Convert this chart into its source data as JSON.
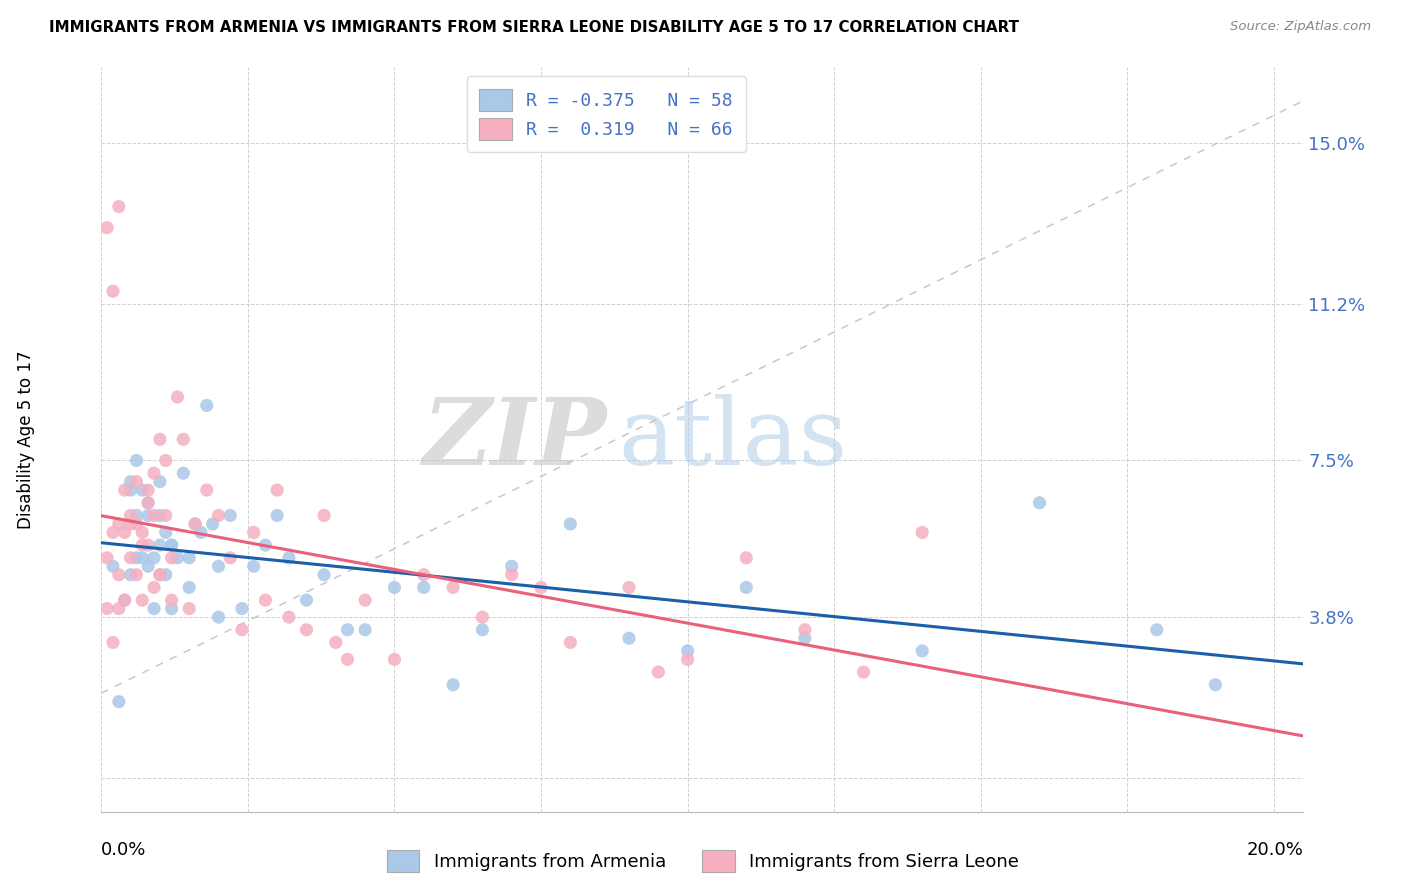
{
  "title": "IMMIGRANTS FROM ARMENIA VS IMMIGRANTS FROM SIERRA LEONE DISABILITY AGE 5 TO 17 CORRELATION CHART",
  "source": "Source: ZipAtlas.com",
  "ylabel": "Disability Age 5 to 17",
  "ytick_vals": [
    0.0,
    0.038,
    0.075,
    0.112,
    0.15
  ],
  "ytick_labels": [
    "",
    "3.8%",
    "7.5%",
    "11.2%",
    "15.0%"
  ],
  "xtick_vals": [
    0.0,
    0.025,
    0.05,
    0.075,
    0.1,
    0.125,
    0.15,
    0.175,
    0.2
  ],
  "xlim": [
    0.0,
    0.205
  ],
  "ylim": [
    -0.008,
    0.168
  ],
  "watermark_zip": "ZIP",
  "watermark_atlas": "atlas",
  "legend_blue_r": "-0.375",
  "legend_blue_n": "58",
  "legend_pink_r": "0.319",
  "legend_pink_n": "66",
  "blue_scatter_color": "#aac8e8",
  "pink_scatter_color": "#f5afc0",
  "blue_line_color": "#1a5fa8",
  "pink_line_color": "#e8607a",
  "diag_color": "#c8c8c8",
  "armenia_x": [
    0.002,
    0.003,
    0.004,
    0.005,
    0.005,
    0.006,
    0.006,
    0.007,
    0.007,
    0.008,
    0.008,
    0.009,
    0.009,
    0.01,
    0.01,
    0.011,
    0.011,
    0.012,
    0.012,
    0.013,
    0.014,
    0.015,
    0.016,
    0.017,
    0.018,
    0.019,
    0.02,
    0.022,
    0.024,
    0.026,
    0.028,
    0.03,
    0.032,
    0.035,
    0.038,
    0.042,
    0.045,
    0.05,
    0.055,
    0.06,
    0.065,
    0.07,
    0.08,
    0.09,
    0.1,
    0.11,
    0.12,
    0.14,
    0.16,
    0.18,
    0.19,
    0.005,
    0.006,
    0.008,
    0.01,
    0.012,
    0.015,
    0.02
  ],
  "armenia_y": [
    0.05,
    0.018,
    0.042,
    0.048,
    0.068,
    0.062,
    0.052,
    0.052,
    0.068,
    0.05,
    0.062,
    0.04,
    0.052,
    0.055,
    0.062,
    0.048,
    0.058,
    0.04,
    0.055,
    0.052,
    0.072,
    0.052,
    0.06,
    0.058,
    0.088,
    0.06,
    0.05,
    0.062,
    0.04,
    0.05,
    0.055,
    0.062,
    0.052,
    0.042,
    0.048,
    0.035,
    0.035,
    0.045,
    0.045,
    0.022,
    0.035,
    0.05,
    0.06,
    0.033,
    0.03,
    0.045,
    0.033,
    0.03,
    0.065,
    0.035,
    0.022,
    0.07,
    0.075,
    0.065,
    0.07,
    0.055,
    0.045,
    0.038
  ],
  "sierraleone_x": [
    0.001,
    0.001,
    0.002,
    0.002,
    0.003,
    0.003,
    0.004,
    0.004,
    0.005,
    0.005,
    0.006,
    0.006,
    0.007,
    0.007,
    0.008,
    0.008,
    0.009,
    0.009,
    0.01,
    0.01,
    0.011,
    0.012,
    0.013,
    0.014,
    0.015,
    0.016,
    0.018,
    0.02,
    0.022,
    0.024,
    0.026,
    0.028,
    0.03,
    0.032,
    0.035,
    0.038,
    0.04,
    0.042,
    0.045,
    0.05,
    0.055,
    0.06,
    0.065,
    0.07,
    0.075,
    0.08,
    0.09,
    0.095,
    0.1,
    0.11,
    0.12,
    0.13,
    0.14,
    0.003,
    0.004,
    0.005,
    0.006,
    0.007,
    0.008,
    0.009,
    0.01,
    0.011,
    0.012,
    0.001,
    0.002,
    0.003
  ],
  "sierraleone_y": [
    0.052,
    0.04,
    0.032,
    0.058,
    0.04,
    0.06,
    0.058,
    0.042,
    0.052,
    0.062,
    0.048,
    0.06,
    0.042,
    0.058,
    0.055,
    0.068,
    0.072,
    0.062,
    0.08,
    0.048,
    0.062,
    0.052,
    0.09,
    0.08,
    0.04,
    0.06,
    0.068,
    0.062,
    0.052,
    0.035,
    0.058,
    0.042,
    0.068,
    0.038,
    0.035,
    0.062,
    0.032,
    0.028,
    0.042,
    0.028,
    0.048,
    0.045,
    0.038,
    0.048,
    0.045,
    0.032,
    0.045,
    0.025,
    0.028,
    0.052,
    0.035,
    0.025,
    0.058,
    0.048,
    0.068,
    0.06,
    0.07,
    0.055,
    0.065,
    0.045,
    0.048,
    0.075,
    0.042,
    0.13,
    0.115,
    0.135
  ]
}
